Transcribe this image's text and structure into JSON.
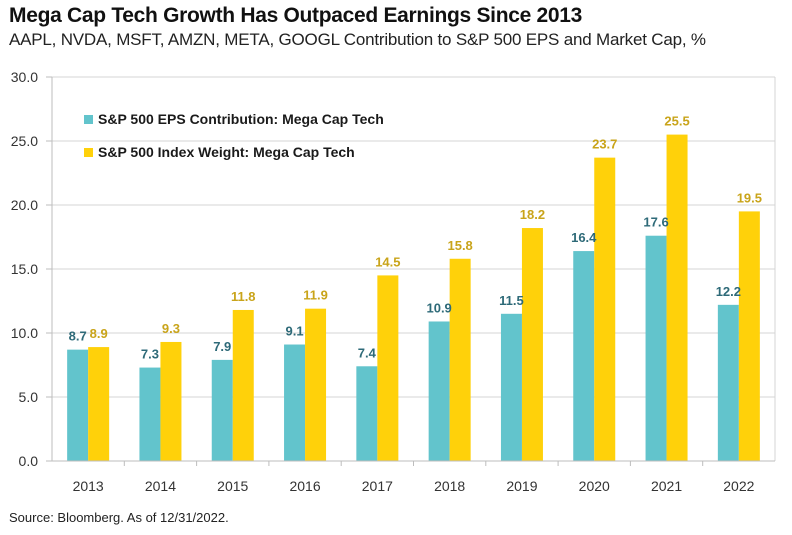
{
  "header": {
    "title": "Mega Cap Tech Growth Has Outpaced Earnings Since 2013",
    "subtitle": "AAPL, NVDA, MSFT, AMZN, META, GOOGL Contribution to S&P 500 EPS and Market Cap, %"
  },
  "footer": {
    "source": "Source: Bloomberg. As of 12/31/2022."
  },
  "chart_data": {
    "type": "bar",
    "title": "Mega Cap Tech Growth Has Outpaced Earnings Since 2013",
    "subtitle": "AAPL, NVDA, MSFT, AMZN, META, GOOGL Contribution to S&P 500 EPS and Market Cap, %",
    "xlabel": "",
    "ylabel": "",
    "categories": [
      "2013",
      "2014",
      "2015",
      "2016",
      "2017",
      "2018",
      "2019",
      "2020",
      "2021",
      "2022"
    ],
    "series": [
      {
        "name": "S&P 500 EPS Contribution: Mega Cap Tech",
        "color": "#62c4cc",
        "label_color": "#2e6a78",
        "values": [
          8.7,
          7.3,
          7.9,
          9.1,
          7.4,
          10.9,
          11.5,
          16.4,
          17.6,
          12.2
        ]
      },
      {
        "name": "S&P 500 Index Weight: Mega Cap Tech",
        "color": "#ffd10a",
        "label_color": "#c9a41a",
        "values": [
          8.9,
          9.3,
          11.8,
          11.9,
          14.5,
          15.8,
          18.2,
          23.7,
          25.5,
          19.5
        ]
      }
    ],
    "ylim": [
      0,
      30
    ],
    "yticks": [
      "0.0",
      "5.0",
      "10.0",
      "15.0",
      "20.0",
      "25.0",
      "30.0"
    ],
    "grid": true,
    "legend_position": "top-left",
    "data_labels": true
  }
}
